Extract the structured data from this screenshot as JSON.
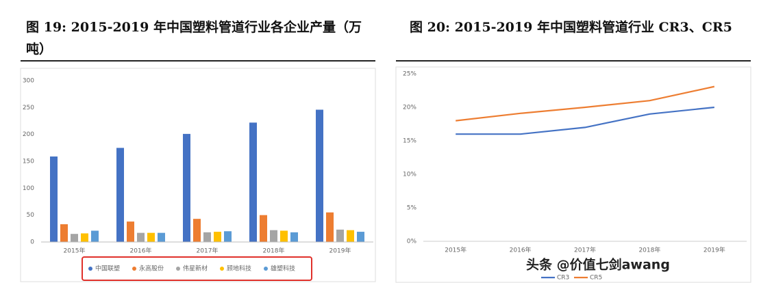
{
  "chart_data": [
    {
      "type": "bar",
      "title": "图 19: 2015-2019 年中国塑料管道行业各企业产量（万吨）",
      "categories": [
        "2015年",
        "2016年",
        "2017年",
        "2018年",
        "2019年"
      ],
      "series": [
        {
          "name": "中国联塑",
          "color": "#4472c4",
          "values": [
            159,
            175,
            201,
            222,
            246
          ]
        },
        {
          "name": "永高股份",
          "color": "#ed7d31",
          "values": [
            33,
            38,
            43,
            50,
            55
          ]
        },
        {
          "name": "伟星新材",
          "color": "#a5a5a5",
          "values": [
            15,
            17,
            18,
            22,
            23
          ]
        },
        {
          "name": "顾地科技",
          "color": "#ffc000",
          "values": [
            16,
            17,
            19,
            21,
            22
          ]
        },
        {
          "name": "雄塑科技",
          "color": "#5b9bd5",
          "values": [
            21,
            17,
            20,
            18,
            19
          ]
        }
      ],
      "ylim": [
        0,
        300
      ],
      "yticks": [
        0,
        50,
        100,
        150,
        200,
        250,
        300
      ],
      "grid": false
    },
    {
      "type": "line",
      "title": "图 20: 2015-2019 年中国塑料管道行业 CR3、CR5",
      "categories": [
        "2015年",
        "2016年",
        "2017年",
        "2018年",
        "2019年"
      ],
      "series": [
        {
          "name": "CR3",
          "color": "#4472c4",
          "values": [
            16.0,
            16.0,
            17.0,
            19.0,
            20.0
          ]
        },
        {
          "name": "CR5",
          "color": "#ed7d31",
          "values": [
            18.0,
            19.1,
            20.0,
            21.0,
            23.1
          ]
        }
      ],
      "ylim": [
        0,
        25
      ],
      "yticks": [
        {
          "value": 0,
          "label": "0%"
        },
        {
          "value": 5,
          "label": "5%"
        },
        {
          "value": 10,
          "label": "10%"
        },
        {
          "value": 15,
          "label": "15%"
        },
        {
          "value": 20,
          "label": "20%"
        },
        {
          "value": 25,
          "label": "25%"
        }
      ],
      "grid": false
    }
  ],
  "watermark": "头条 @价值七剑awang"
}
